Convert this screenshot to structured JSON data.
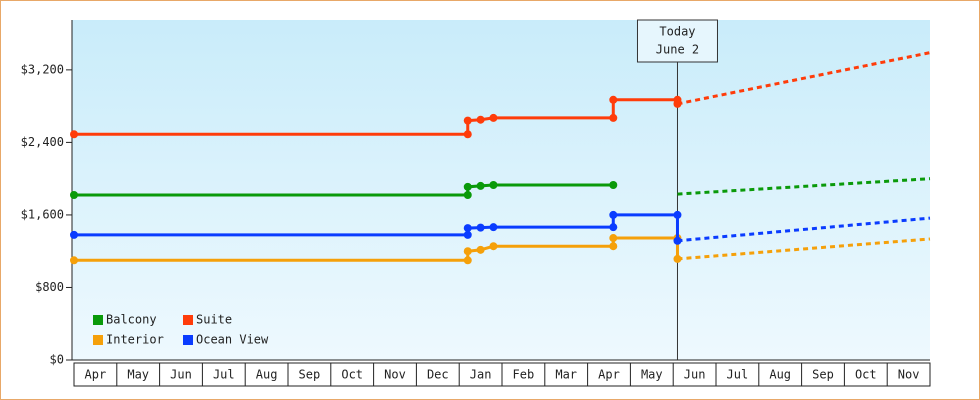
{
  "chart_data": {
    "type": "line",
    "xlim": [
      0,
      20
    ],
    "xticks": [
      {
        "value": 0,
        "label": "Apr"
      },
      {
        "value": 1,
        "label": "May"
      },
      {
        "value": 2,
        "label": "Jun"
      },
      {
        "value": 3,
        "label": "Jul"
      },
      {
        "value": 4,
        "label": "Aug"
      },
      {
        "value": 5,
        "label": "Sep"
      },
      {
        "value": 6,
        "label": "Oct"
      },
      {
        "value": 7,
        "label": "Nov"
      },
      {
        "value": 8,
        "label": "Dec"
      },
      {
        "value": 9,
        "label": "Jan"
      },
      {
        "value": 10,
        "label": "Feb"
      },
      {
        "value": 11,
        "label": "Mar"
      },
      {
        "value": 12,
        "label": "Apr"
      },
      {
        "value": 13,
        "label": "May"
      },
      {
        "value": 14,
        "label": "Jun"
      },
      {
        "value": 15,
        "label": "Jul"
      },
      {
        "value": 16,
        "label": "Aug"
      },
      {
        "value": 17,
        "label": "Sep"
      },
      {
        "value": 18,
        "label": "Oct"
      },
      {
        "value": 19,
        "label": "Nov"
      }
    ],
    "ylim": [
      0,
      3750
    ],
    "yticks": [
      {
        "value": 0,
        "label": "$0"
      },
      {
        "value": 800,
        "label": "$800"
      },
      {
        "value": 1600,
        "label": "$1,600"
      },
      {
        "value": 2400,
        "label": "$2,400"
      },
      {
        "value": 3200,
        "label": "$3,200"
      }
    ],
    "legend": "bottom-left",
    "annotation": {
      "x": 14.1,
      "lines": [
        "Today",
        "June 2"
      ]
    },
    "series": [
      {
        "name": "Balcony",
        "color": "#0a9a0a",
        "x": [
          0,
          9.2,
          9.2,
          9.5,
          9.8,
          12.6
        ],
        "values": [
          1820,
          1820,
          1910,
          1920,
          1930,
          1930
        ],
        "forecast": {
          "x": [
            14.1,
            20
          ],
          "values": [
            1830,
            2000
          ]
        }
      },
      {
        "name": "Suite",
        "color": "#ff3c0a",
        "x": [
          0,
          9.2,
          9.2,
          9.5,
          9.8,
          12.6,
          12.6,
          14.1,
          14.1
        ],
        "values": [
          2490,
          2490,
          2640,
          2650,
          2670,
          2670,
          2870,
          2870,
          2825
        ],
        "forecast": {
          "x": [
            14.1,
            20
          ],
          "values": [
            2825,
            3390
          ]
        }
      },
      {
        "name": "Interior",
        "color": "#f5a00a",
        "x": [
          0,
          9.2,
          9.2,
          9.5,
          9.8,
          12.6,
          12.6,
          14.1,
          14.1
        ],
        "values": [
          1100,
          1100,
          1200,
          1215,
          1255,
          1255,
          1345,
          1345,
          1115
        ],
        "forecast": {
          "x": [
            14.1,
            20
          ],
          "values": [
            1115,
            1335
          ]
        }
      },
      {
        "name": "Ocean View",
        "color": "#0a3cff",
        "x": [
          0,
          9.2,
          9.2,
          9.5,
          9.8,
          12.6,
          12.6,
          14.1,
          14.1
        ],
        "values": [
          1380,
          1380,
          1455,
          1460,
          1465,
          1465,
          1600,
          1600,
          1315
        ],
        "forecast": {
          "x": [
            14.1,
            20
          ],
          "values": [
            1315,
            1565
          ]
        }
      }
    ]
  }
}
